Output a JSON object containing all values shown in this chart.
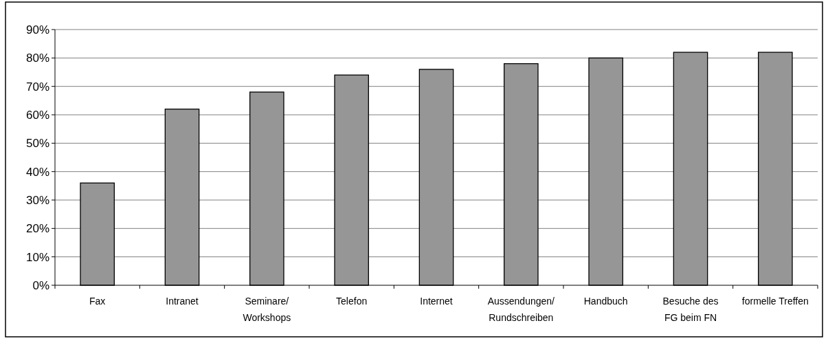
{
  "chart_data": {
    "type": "bar",
    "categories": [
      "Fax",
      "Intranet",
      "Seminare/\nWorkshops",
      "Telefon",
      "Internet",
      "Aussendungen/\nRundschreiben",
      "Handbuch",
      "Besuche des\nFG beim FN",
      "formelle Treffen"
    ],
    "values": [
      36,
      62,
      68,
      74,
      76,
      78,
      80,
      82,
      82
    ],
    "color": "#969696",
    "ylim": [
      0,
      90
    ],
    "yticks": [
      {
        "value": 0,
        "label": "0%"
      },
      {
        "value": 10,
        "label": "10%"
      },
      {
        "value": 20,
        "label": "20%"
      },
      {
        "value": 30,
        "label": "30%"
      },
      {
        "value": 40,
        "label": "40%"
      },
      {
        "value": 50,
        "label": "50%"
      },
      {
        "value": 60,
        "label": "60%"
      },
      {
        "value": 70,
        "label": "70%"
      },
      {
        "value": 80,
        "label": "80%"
      },
      {
        "value": 90,
        "label": "90%"
      }
    ],
    "grid": "y"
  }
}
